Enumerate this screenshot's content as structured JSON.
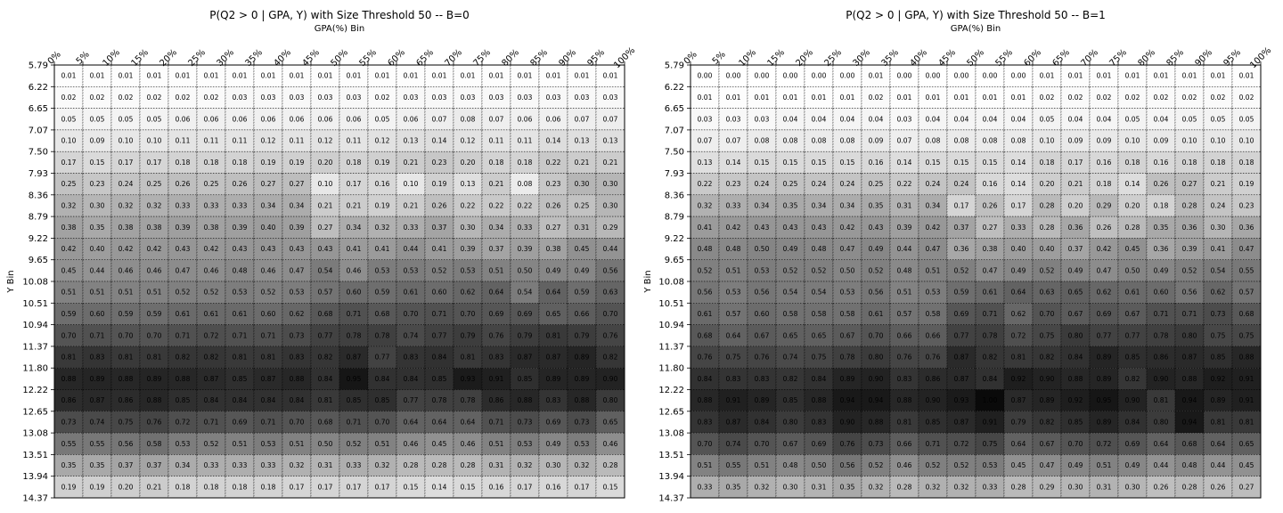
{
  "charts": [
    {
      "type": "heatmap",
      "title": "P(Q2 > 0 | GPA, Y) with Size Threshold 50 -- B=0",
      "xlabel": "GPA(%) Bin",
      "ylabel": "Y Bin",
      "x_ticks": [
        "0%",
        "5%",
        "10%",
        "15%",
        "20%",
        "25%",
        "30%",
        "35%",
        "40%",
        "45%",
        "50%",
        "55%",
        "60%",
        "65%",
        "70%",
        "75%",
        "80%",
        "85%",
        "90%",
        "95%",
        "100%"
      ],
      "y_ticks": [
        "5.79",
        "6.22",
        "6.65",
        "7.07",
        "7.50",
        "7.93",
        "8.36",
        "8.79",
        "9.22",
        "9.65",
        "10.08",
        "10.51",
        "10.94",
        "11.37",
        "11.80",
        "12.22",
        "12.65",
        "13.08",
        "13.51",
        "13.94",
        "14.37"
      ],
      "colormap": "greys",
      "value_range": [
        0,
        1
      ],
      "values": [
        [
          "0.01",
          "0.01",
          "0.01",
          "0.01",
          "0.01",
          "0.01",
          "0.01",
          "0.01",
          "0.01",
          "0.01",
          "0.01",
          "0.01",
          "0.01",
          "0.01",
          "0.01",
          "0.01",
          "0.01",
          "0.01",
          "0.01",
          "0.01"
        ],
        [
          "0.02",
          "0.02",
          "0.02",
          "0.02",
          "0.02",
          "0.02",
          "0.03",
          "0.03",
          "0.03",
          "0.03",
          "0.03",
          "0.02",
          "0.03",
          "0.03",
          "0.03",
          "0.03",
          "0.03",
          "0.03",
          "0.03",
          "0.03"
        ],
        [
          "0.05",
          "0.05",
          "0.05",
          "0.05",
          "0.06",
          "0.06",
          "0.06",
          "0.06",
          "0.06",
          "0.06",
          "0.06",
          "0.05",
          "0.06",
          "0.07",
          "0.08",
          "0.07",
          "0.06",
          "0.06",
          "0.07",
          "0.07"
        ],
        [
          "0.10",
          "0.09",
          "0.10",
          "0.10",
          "0.11",
          "0.11",
          "0.11",
          "0.12",
          "0.11",
          "0.12",
          "0.11",
          "0.12",
          "0.13",
          "0.14",
          "0.12",
          "0.11",
          "0.11",
          "0.14",
          "0.13",
          "0.13"
        ],
        [
          "0.17",
          "0.15",
          "0.17",
          "0.17",
          "0.18",
          "0.18",
          "0.18",
          "0.19",
          "0.19",
          "0.20",
          "0.18",
          "0.19",
          "0.21",
          "0.23",
          "0.20",
          "0.18",
          "0.18",
          "0.22",
          "0.21",
          "0.21"
        ],
        [
          "0.25",
          "0.23",
          "0.24",
          "0.25",
          "0.26",
          "0.25",
          "0.26",
          "0.27",
          "0.27",
          "0.10",
          "0.17",
          "0.16",
          "0.10",
          "0.19",
          "0.13",
          "0.21",
          "0.08",
          "0.23",
          "0.30",
          "0.30"
        ],
        [
          "0.32",
          "0.30",
          "0.32",
          "0.32",
          "0.33",
          "0.33",
          "0.33",
          "0.34",
          "0.34",
          "0.21",
          "0.21",
          "0.19",
          "0.21",
          "0.26",
          "0.22",
          "0.22",
          "0.22",
          "0.26",
          "0.25",
          "0.30"
        ],
        [
          "0.38",
          "0.35",
          "0.38",
          "0.38",
          "0.39",
          "0.38",
          "0.39",
          "0.40",
          "0.39",
          "0.27",
          "0.34",
          "0.32",
          "0.33",
          "0.37",
          "0.30",
          "0.34",
          "0.33",
          "0.27",
          "0.31",
          "0.29"
        ],
        [
          "0.42",
          "0.40",
          "0.42",
          "0.42",
          "0.43",
          "0.42",
          "0.43",
          "0.43",
          "0.43",
          "0.43",
          "0.41",
          "0.41",
          "0.44",
          "0.41",
          "0.39",
          "0.37",
          "0.39",
          "0.38",
          "0.45",
          "0.44"
        ],
        [
          "0.45",
          "0.44",
          "0.46",
          "0.46",
          "0.47",
          "0.46",
          "0.48",
          "0.46",
          "0.47",
          "0.54",
          "0.46",
          "0.53",
          "0.53",
          "0.52",
          "0.53",
          "0.51",
          "0.50",
          "0.49",
          "0.49",
          "0.56"
        ],
        [
          "0.51",
          "0.51",
          "0.51",
          "0.51",
          "0.52",
          "0.52",
          "0.53",
          "0.52",
          "0.53",
          "0.57",
          "0.60",
          "0.59",
          "0.61",
          "0.60",
          "0.62",
          "0.64",
          "0.54",
          "0.64",
          "0.59",
          "0.63"
        ],
        [
          "0.59",
          "0.60",
          "0.59",
          "0.59",
          "0.61",
          "0.61",
          "0.61",
          "0.60",
          "0.62",
          "0.68",
          "0.71",
          "0.68",
          "0.70",
          "0.71",
          "0.70",
          "0.69",
          "0.69",
          "0.65",
          "0.66",
          "0.70"
        ],
        [
          "0.70",
          "0.71",
          "0.70",
          "0.70",
          "0.71",
          "0.72",
          "0.71",
          "0.71",
          "0.73",
          "0.77",
          "0.78",
          "0.78",
          "0.74",
          "0.77",
          "0.79",
          "0.76",
          "0.79",
          "0.81",
          "0.79",
          "0.76"
        ],
        [
          "0.81",
          "0.83",
          "0.81",
          "0.81",
          "0.82",
          "0.82",
          "0.81",
          "0.81",
          "0.83",
          "0.82",
          "0.87",
          "0.77",
          "0.83",
          "0.84",
          "0.81",
          "0.83",
          "0.87",
          "0.87",
          "0.89",
          "0.82"
        ],
        [
          "0.88",
          "0.89",
          "0.88",
          "0.89",
          "0.88",
          "0.87",
          "0.85",
          "0.87",
          "0.88",
          "0.84",
          "0.95",
          "0.84",
          "0.84",
          "0.85",
          "0.93",
          "0.91",
          "0.85",
          "0.89",
          "0.89",
          "0.90"
        ],
        [
          "0.86",
          "0.87",
          "0.86",
          "0.88",
          "0.85",
          "0.84",
          "0.84",
          "0.84",
          "0.84",
          "0.81",
          "0.85",
          "0.85",
          "0.77",
          "0.78",
          "0.78",
          "0.86",
          "0.88",
          "0.83",
          "0.88",
          "0.80"
        ],
        [
          "0.73",
          "0.74",
          "0.75",
          "0.76",
          "0.72",
          "0.71",
          "0.69",
          "0.71",
          "0.70",
          "0.68",
          "0.71",
          "0.70",
          "0.64",
          "0.64",
          "0.64",
          "0.71",
          "0.73",
          "0.69",
          "0.73",
          "0.65"
        ],
        [
          "0.55",
          "0.55",
          "0.56",
          "0.58",
          "0.53",
          "0.52",
          "0.51",
          "0.53",
          "0.51",
          "0.50",
          "0.52",
          "0.51",
          "0.46",
          "0.45",
          "0.46",
          "0.51",
          "0.53",
          "0.49",
          "0.53",
          "0.46"
        ],
        [
          "0.35",
          "0.35",
          "0.37",
          "0.37",
          "0.34",
          "0.33",
          "0.33",
          "0.33",
          "0.32",
          "0.31",
          "0.33",
          "0.32",
          "0.28",
          "0.28",
          "0.28",
          "0.31",
          "0.32",
          "0.30",
          "0.32",
          "0.28"
        ],
        [
          "0.19",
          "0.19",
          "0.20",
          "0.21",
          "0.18",
          "0.18",
          "0.18",
          "0.18",
          "0.17",
          "0.17",
          "0.17",
          "0.17",
          "0.15",
          "0.14",
          "0.15",
          "0.16",
          "0.17",
          "0.16",
          "0.17",
          "0.15"
        ]
      ]
    },
    {
      "type": "heatmap",
      "title": "P(Q2 > 0 | GPA, Y) with Size Threshold 50 -- B=1",
      "xlabel": "GPA(%) Bin",
      "ylabel": "Y Bin",
      "x_ticks": [
        "0%",
        "5%",
        "10%",
        "15%",
        "20%",
        "25%",
        "30%",
        "35%",
        "40%",
        "45%",
        "50%",
        "55%",
        "60%",
        "65%",
        "70%",
        "75%",
        "80%",
        "85%",
        "90%",
        "95%",
        "100%"
      ],
      "y_ticks": [
        "5.79",
        "6.22",
        "6.65",
        "7.07",
        "7.50",
        "7.93",
        "8.36",
        "8.79",
        "9.22",
        "9.65",
        "10.08",
        "10.51",
        "10.94",
        "11.37",
        "11.80",
        "12.22",
        "12.65",
        "13.08",
        "13.51",
        "13.94",
        "14.37"
      ],
      "colormap": "greys",
      "value_range": [
        0,
        1
      ],
      "values": [
        [
          "0.00",
          "0.00",
          "0.00",
          "0.00",
          "0.00",
          "0.00",
          "0.01",
          "0.00",
          "0.00",
          "0.00",
          "0.00",
          "0.00",
          "0.01",
          "0.01",
          "0.01",
          "0.01",
          "0.01",
          "0.01",
          "0.01",
          "0.01"
        ],
        [
          "0.01",
          "0.01",
          "0.01",
          "0.01",
          "0.01",
          "0.01",
          "0.02",
          "0.01",
          "0.01",
          "0.01",
          "0.01",
          "0.01",
          "0.02",
          "0.02",
          "0.02",
          "0.02",
          "0.02",
          "0.02",
          "0.02",
          "0.02"
        ],
        [
          "0.03",
          "0.03",
          "0.03",
          "0.04",
          "0.04",
          "0.04",
          "0.04",
          "0.03",
          "0.04",
          "0.04",
          "0.04",
          "0.04",
          "0.05",
          "0.04",
          "0.04",
          "0.05",
          "0.04",
          "0.05",
          "0.05",
          "0.05"
        ],
        [
          "0.07",
          "0.07",
          "0.08",
          "0.08",
          "0.08",
          "0.08",
          "0.09",
          "0.07",
          "0.08",
          "0.08",
          "0.08",
          "0.08",
          "0.10",
          "0.09",
          "0.09",
          "0.10",
          "0.09",
          "0.10",
          "0.10",
          "0.10"
        ],
        [
          "0.13",
          "0.14",
          "0.15",
          "0.15",
          "0.15",
          "0.15",
          "0.16",
          "0.14",
          "0.15",
          "0.15",
          "0.15",
          "0.14",
          "0.18",
          "0.17",
          "0.16",
          "0.18",
          "0.16",
          "0.18",
          "0.18",
          "0.18"
        ],
        [
          "0.22",
          "0.23",
          "0.24",
          "0.25",
          "0.24",
          "0.24",
          "0.25",
          "0.22",
          "0.24",
          "0.24",
          "0.16",
          "0.14",
          "0.20",
          "0.21",
          "0.18",
          "0.14",
          "0.26",
          "0.27",
          "0.21",
          "0.19"
        ],
        [
          "0.32",
          "0.33",
          "0.34",
          "0.35",
          "0.34",
          "0.34",
          "0.35",
          "0.31",
          "0.34",
          "0.17",
          "0.26",
          "0.17",
          "0.28",
          "0.20",
          "0.29",
          "0.20",
          "0.18",
          "0.28",
          "0.24",
          "0.23"
        ],
        [
          "0.41",
          "0.42",
          "0.43",
          "0.43",
          "0.43",
          "0.42",
          "0.43",
          "0.39",
          "0.42",
          "0.37",
          "0.27",
          "0.33",
          "0.28",
          "0.36",
          "0.26",
          "0.28",
          "0.35",
          "0.36",
          "0.30",
          "0.36"
        ],
        [
          "0.48",
          "0.48",
          "0.50",
          "0.49",
          "0.48",
          "0.47",
          "0.49",
          "0.44",
          "0.47",
          "0.36",
          "0.38",
          "0.40",
          "0.40",
          "0.37",
          "0.42",
          "0.45",
          "0.36",
          "0.39",
          "0.41",
          "0.47"
        ],
        [
          "0.52",
          "0.51",
          "0.53",
          "0.52",
          "0.52",
          "0.50",
          "0.52",
          "0.48",
          "0.51",
          "0.52",
          "0.47",
          "0.49",
          "0.52",
          "0.49",
          "0.47",
          "0.50",
          "0.49",
          "0.52",
          "0.54",
          "0.55"
        ],
        [
          "0.56",
          "0.53",
          "0.56",
          "0.54",
          "0.54",
          "0.53",
          "0.56",
          "0.51",
          "0.53",
          "0.59",
          "0.61",
          "0.64",
          "0.63",
          "0.65",
          "0.62",
          "0.61",
          "0.60",
          "0.56",
          "0.62",
          "0.57"
        ],
        [
          "0.61",
          "0.57",
          "0.60",
          "0.58",
          "0.58",
          "0.58",
          "0.61",
          "0.57",
          "0.58",
          "0.69",
          "0.71",
          "0.62",
          "0.70",
          "0.67",
          "0.69",
          "0.67",
          "0.71",
          "0.71",
          "0.73",
          "0.68"
        ],
        [
          "0.68",
          "0.64",
          "0.67",
          "0.65",
          "0.65",
          "0.67",
          "0.70",
          "0.66",
          "0.66",
          "0.77",
          "0.78",
          "0.72",
          "0.75",
          "0.80",
          "0.77",
          "0.77",
          "0.78",
          "0.80",
          "0.75",
          "0.75"
        ],
        [
          "0.76",
          "0.75",
          "0.76",
          "0.74",
          "0.75",
          "0.78",
          "0.80",
          "0.76",
          "0.76",
          "0.87",
          "0.82",
          "0.81",
          "0.82",
          "0.84",
          "0.89",
          "0.85",
          "0.86",
          "0.87",
          "0.85",
          "0.88"
        ],
        [
          "0.84",
          "0.83",
          "0.83",
          "0.82",
          "0.84",
          "0.89",
          "0.90",
          "0.83",
          "0.86",
          "0.87",
          "0.84",
          "0.92",
          "0.90",
          "0.88",
          "0.89",
          "0.82",
          "0.90",
          "0.88",
          "0.92",
          "0.91"
        ],
        [
          "0.88",
          "0.91",
          "0.89",
          "0.85",
          "0.88",
          "0.94",
          "0.94",
          "0.88",
          "0.90",
          "0.93",
          "1.00",
          "0.87",
          "0.89",
          "0.92",
          "0.95",
          "0.90",
          "0.81",
          "0.94",
          "0.89",
          "0.91"
        ],
        [
          "0.83",
          "0.87",
          "0.84",
          "0.80",
          "0.83",
          "0.90",
          "0.88",
          "0.81",
          "0.85",
          "0.87",
          "0.91",
          "0.79",
          "0.82",
          "0.85",
          "0.89",
          "0.84",
          "0.80",
          "0.94",
          "0.81",
          "0.81"
        ],
        [
          "0.70",
          "0.74",
          "0.70",
          "0.67",
          "0.69",
          "0.76",
          "0.73",
          "0.66",
          "0.71",
          "0.72",
          "0.75",
          "0.64",
          "0.67",
          "0.70",
          "0.72",
          "0.69",
          "0.64",
          "0.68",
          "0.64",
          "0.65"
        ],
        [
          "0.51",
          "0.55",
          "0.51",
          "0.48",
          "0.50",
          "0.56",
          "0.52",
          "0.46",
          "0.52",
          "0.52",
          "0.53",
          "0.45",
          "0.47",
          "0.49",
          "0.51",
          "0.49",
          "0.44",
          "0.48",
          "0.44",
          "0.45"
        ],
        [
          "0.33",
          "0.35",
          "0.32",
          "0.30",
          "0.31",
          "0.35",
          "0.32",
          "0.28",
          "0.32",
          "0.32",
          "0.33",
          "0.28",
          "0.29",
          "0.30",
          "0.31",
          "0.30",
          "0.26",
          "0.28",
          "0.26",
          "0.27"
        ]
      ]
    }
  ]
}
